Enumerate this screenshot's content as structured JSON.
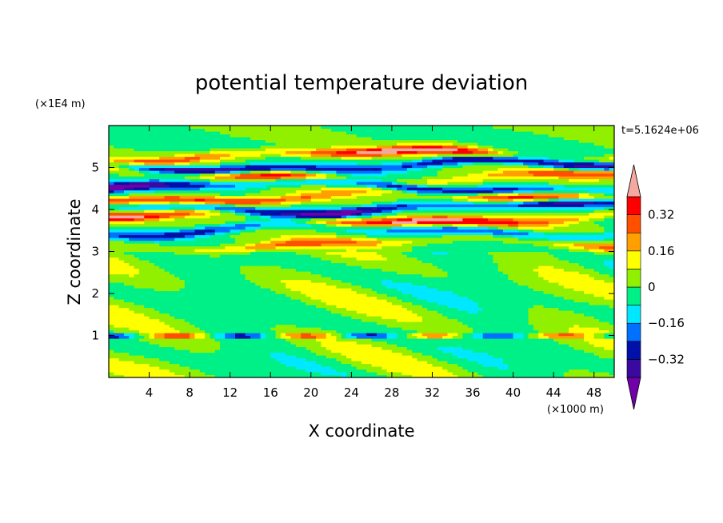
{
  "chart_data": {
    "type": "heatmap",
    "subtype": "filled-contour",
    "title": "potential temperature deviation",
    "time_label": "t=5.1624e+06",
    "xlabel": "X coordinate",
    "ylabel": "Z coordinate",
    "x_scale_label": "(×1000 m)",
    "y_scale_label": "(×1E4 m)",
    "xlim": [
      0,
      50
    ],
    "ylim": [
      0,
      6
    ],
    "x_ticks": [
      4,
      8,
      12,
      16,
      20,
      24,
      28,
      32,
      36,
      40,
      44,
      48
    ],
    "x_tick_labels": [
      "4",
      "8",
      "12",
      "16",
      "20",
      "24",
      "28",
      "32",
      "36",
      "40",
      "44",
      "48"
    ],
    "y_ticks": [
      1,
      2,
      3,
      4,
      5
    ],
    "y_tick_labels": [
      "1",
      "2",
      "3",
      "4",
      "5"
    ],
    "colorbar": {
      "levels": [
        -0.4,
        -0.32,
        -0.24,
        -0.16,
        -0.08,
        0,
        0.08,
        0.16,
        0.24,
        0.32,
        0.4
      ],
      "labeled_values": [
        "0.32",
        "0.16",
        "0",
        "−0.16",
        "−0.32"
      ],
      "labeled_numbers": [
        0.32,
        0.16,
        0,
        -0.16,
        -0.32
      ],
      "under_color": "#7000a8",
      "over_color": "#f4a8a0",
      "colors": [
        "#3a0aa0",
        "#0010a8",
        "#0070ff",
        "#00e8ff",
        "#00f088",
        "#90f000",
        "#ffff00",
        "#ffa000",
        "#ff5000",
        "#ff0000"
      ]
    },
    "bands": [
      {
        "z": 0.4,
        "amp": 0.1,
        "field": "background"
      },
      {
        "z": 1.0,
        "amp": -0.2,
        "field": "dipole"
      },
      {
        "z": 3.2,
        "amp": 0.2,
        "field": "layer"
      },
      {
        "z": 3.5,
        "amp": -0.24,
        "field": "layer"
      },
      {
        "z": 3.8,
        "amp": 0.4,
        "field": "layer"
      },
      {
        "z": 4.05,
        "amp": -0.42,
        "field": "layer"
      },
      {
        "z": 4.3,
        "amp": 0.35,
        "field": "layer"
      },
      {
        "z": 4.55,
        "amp": -0.4,
        "field": "layer"
      },
      {
        "z": 4.8,
        "amp": 0.3,
        "field": "layer"
      },
      {
        "z": 5.05,
        "amp": -0.42,
        "field": "layer"
      },
      {
        "z": 5.3,
        "amp": 0.38,
        "field": "layer"
      }
    ]
  }
}
